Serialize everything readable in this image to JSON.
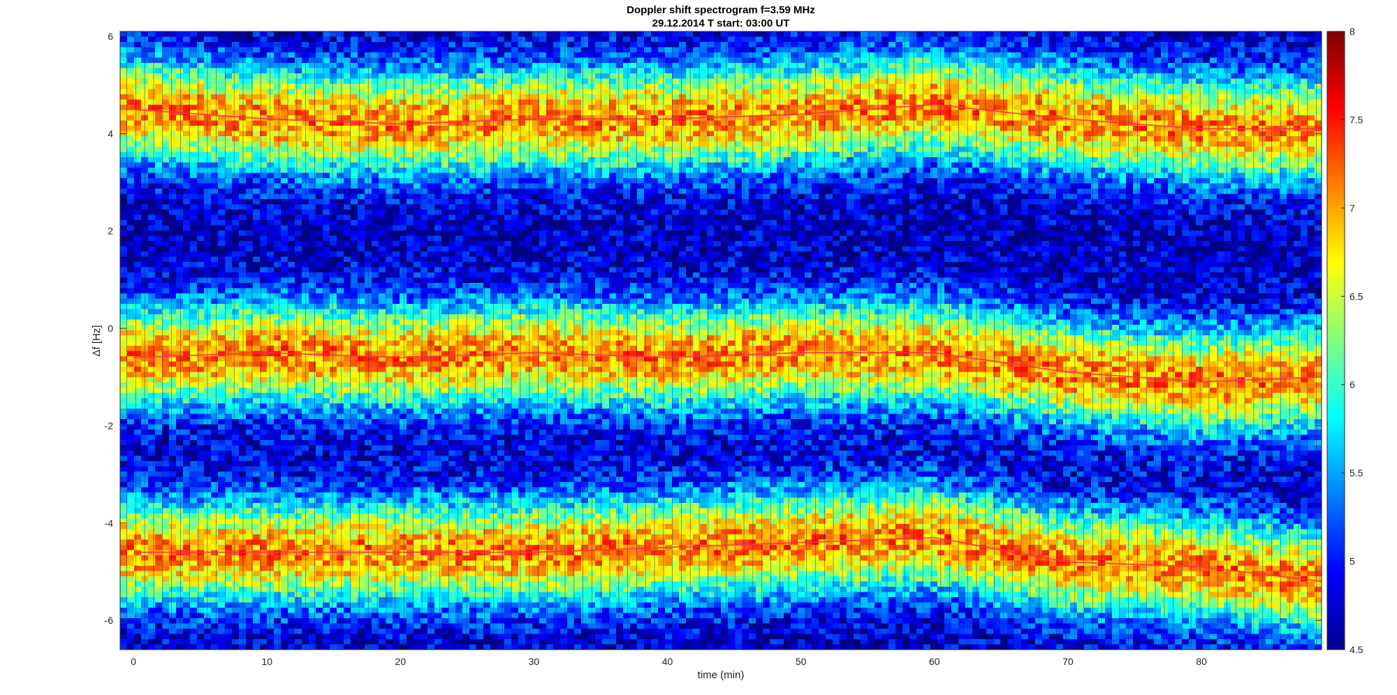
{
  "chart_data": {
    "type": "heatmap",
    "title": "Doppler shift spectrogram f=3.59 MHz",
    "subtitle": "29.12.2014   T start: 03:00 UT",
    "xlabel": "time (min)",
    "ylabel": "Δf [Hz]",
    "xlim": [
      -1,
      89
    ],
    "ylim": [
      -6.6,
      6.1
    ],
    "x_ticks": [
      0,
      10,
      20,
      30,
      40,
      50,
      60,
      70,
      80
    ],
    "y_ticks": [
      6,
      4,
      2,
      0,
      -2,
      -4,
      -6
    ],
    "x_tick_labels": [
      "0",
      "10",
      "20",
      "30",
      "40",
      "50",
      "60",
      "70",
      "80"
    ],
    "y_tick_labels": [
      "6",
      "4",
      "2",
      "0",
      "-2",
      "-4",
      "-6"
    ],
    "colorbar": {
      "colormap": "jet",
      "clim": [
        4.5,
        8
      ],
      "ticks": [
        8,
        7.5,
        7,
        6.5,
        6,
        5.5,
        5,
        4.5
      ],
      "tick_labels": [
        "8",
        "7.5",
        "7",
        "6.5",
        "6",
        "5.5",
        "5",
        "4.5"
      ]
    },
    "grid": false,
    "series": [
      {
        "role": "upper mode trace",
        "x": [
          0,
          10,
          20,
          30,
          40,
          50,
          60,
          70,
          80,
          89
        ],
        "y": [
          4.5,
          4.3,
          4.2,
          4.3,
          4.3,
          4.4,
          4.6,
          4.3,
          4.1,
          4.1
        ]
      },
      {
        "role": "middle mode trace",
        "x": [
          0,
          10,
          20,
          30,
          40,
          50,
          60,
          70,
          80,
          89
        ],
        "y": [
          -0.6,
          -0.5,
          -0.6,
          -0.5,
          -0.6,
          -0.5,
          -0.5,
          -0.9,
          -1.1,
          -1.0
        ]
      },
      {
        "role": "lower mode trace",
        "x": [
          0,
          10,
          20,
          30,
          40,
          50,
          60,
          70,
          80,
          89
        ],
        "y": [
          -4.6,
          -4.6,
          -4.6,
          -4.6,
          -4.5,
          -4.4,
          -4.3,
          -4.8,
          -4.9,
          -5.2
        ]
      }
    ]
  }
}
